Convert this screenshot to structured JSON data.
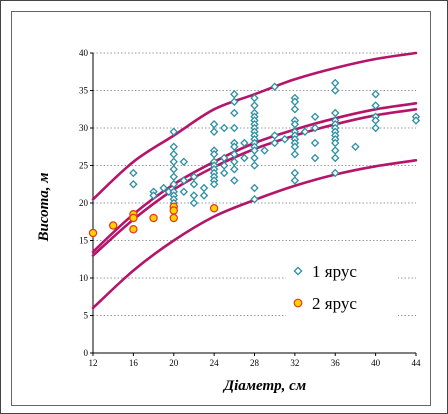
{
  "colors": {
    "curve": "#b5146b",
    "series1_stroke": "#2f8fa3",
    "series2_stroke": "#e5381e",
    "series2_fill": "#ffd200",
    "grid": "#9a9a9a"
  },
  "chart_data": {
    "type": "scatter",
    "xlabel": "Діаметр, см",
    "ylabel": "Висота, м",
    "xlim": [
      12,
      44
    ],
    "ylim": [
      0,
      40
    ],
    "x_ticks": [
      12,
      16,
      20,
      24,
      28,
      32,
      36,
      40,
      44
    ],
    "y_ticks": [
      0,
      5,
      10,
      15,
      20,
      25,
      30,
      35,
      40
    ],
    "grid": "horizontal dotted",
    "legend_position": "lower-right",
    "series": [
      {
        "name": "1 ярус",
        "marker": "diamond",
        "points": [
          [
            16,
            24
          ],
          [
            16,
            22.5
          ],
          [
            18,
            21.5
          ],
          [
            18,
            21
          ],
          [
            19,
            22
          ],
          [
            19.5,
            21.5
          ],
          [
            20,
            29.5
          ],
          [
            20,
            27.5
          ],
          [
            20,
            26.5
          ],
          [
            20,
            25.5
          ],
          [
            20,
            24.5
          ],
          [
            20,
            23.5
          ],
          [
            20,
            22.5
          ],
          [
            20,
            21.5
          ],
          [
            20,
            21
          ],
          [
            20,
            20.5
          ],
          [
            20,
            20
          ],
          [
            20,
            19.5
          ],
          [
            21,
            25.5
          ],
          [
            21,
            23
          ],
          [
            21,
            21.5
          ],
          [
            22,
            23.5
          ],
          [
            22,
            22.5
          ],
          [
            22,
            21
          ],
          [
            22,
            20
          ],
          [
            23,
            22
          ],
          [
            23,
            21
          ],
          [
            24,
            30.5
          ],
          [
            24,
            29.5
          ],
          [
            24,
            27
          ],
          [
            24,
            26.5
          ],
          [
            24,
            25.5
          ],
          [
            24,
            25
          ],
          [
            24,
            24.5
          ],
          [
            24,
            24
          ],
          [
            24,
            23.5
          ],
          [
            24,
            23
          ],
          [
            24,
            22.5
          ],
          [
            25,
            30
          ],
          [
            25,
            26
          ],
          [
            25,
            25
          ],
          [
            25,
            24
          ],
          [
            26,
            34.5
          ],
          [
            26,
            33.5
          ],
          [
            26,
            32
          ],
          [
            26,
            30
          ],
          [
            26,
            28
          ],
          [
            26,
            27.5
          ],
          [
            26,
            26.5
          ],
          [
            26,
            25.5
          ],
          [
            26,
            24.5
          ],
          [
            26,
            23
          ],
          [
            27,
            28
          ],
          [
            27,
            26
          ],
          [
            28,
            34
          ],
          [
            28,
            33
          ],
          [
            28,
            32
          ],
          [
            28,
            31.5
          ],
          [
            28,
            31
          ],
          [
            28,
            30.5
          ],
          [
            28,
            30
          ],
          [
            28,
            29.5
          ],
          [
            28,
            29
          ],
          [
            28,
            28.5
          ],
          [
            28,
            28
          ],
          [
            28,
            27.5
          ],
          [
            28,
            27
          ],
          [
            28,
            26
          ],
          [
            28,
            25
          ],
          [
            28,
            22
          ],
          [
            28,
            20.5
          ],
          [
            29,
            27
          ],
          [
            30,
            35.5
          ],
          [
            30,
            29
          ],
          [
            30,
            28
          ],
          [
            31,
            28.5
          ],
          [
            32,
            34
          ],
          [
            32,
            33.5
          ],
          [
            32,
            32.5
          ],
          [
            32,
            31
          ],
          [
            32,
            30.5
          ],
          [
            32,
            29.5
          ],
          [
            32,
            29
          ],
          [
            32,
            28.5
          ],
          [
            32,
            28
          ],
          [
            32,
            27.5
          ],
          [
            32,
            26.5
          ],
          [
            32,
            24
          ],
          [
            32,
            23
          ],
          [
            33,
            29.5
          ],
          [
            34,
            31.5
          ],
          [
            34,
            30
          ],
          [
            34,
            28
          ],
          [
            34,
            26
          ],
          [
            36,
            36
          ],
          [
            36,
            35
          ],
          [
            36,
            32
          ],
          [
            36,
            31
          ],
          [
            36,
            30.5
          ],
          [
            36,
            30
          ],
          [
            36,
            29.5
          ],
          [
            36,
            29
          ],
          [
            36,
            28.5
          ],
          [
            36,
            28
          ],
          [
            36,
            27
          ],
          [
            36,
            26
          ],
          [
            36,
            24
          ],
          [
            38,
            27.5
          ],
          [
            40,
            34.5
          ],
          [
            40,
            33
          ],
          [
            40,
            31.5
          ],
          [
            40,
            31
          ],
          [
            40,
            30
          ],
          [
            44,
            31.5
          ],
          [
            44,
            31
          ]
        ]
      },
      {
        "name": "2 ярус",
        "marker": "circle",
        "points": [
          [
            12,
            16
          ],
          [
            14,
            17
          ],
          [
            16,
            18.5
          ],
          [
            16,
            18
          ],
          [
            16,
            16.5
          ],
          [
            18,
            18
          ],
          [
            20,
            19.5
          ],
          [
            20,
            19
          ],
          [
            20,
            18
          ],
          [
            24,
            19.3
          ]
        ]
      }
    ],
    "curves": [
      {
        "role": "upper",
        "points": [
          [
            12,
            20.5
          ],
          [
            16,
            25.5
          ],
          [
            20,
            29
          ],
          [
            24,
            32.5
          ],
          [
            28,
            34.5
          ],
          [
            32,
            36.5
          ],
          [
            36,
            38
          ],
          [
            40,
            39.2
          ],
          [
            44,
            40
          ]
        ]
      },
      {
        "role": "mid_a",
        "points": [
          [
            12,
            13.5
          ],
          [
            16,
            18.5
          ],
          [
            20,
            22.5
          ],
          [
            24,
            25.5
          ],
          [
            28,
            28
          ],
          [
            32,
            29.8
          ],
          [
            36,
            31.3
          ],
          [
            40,
            32.5
          ],
          [
            44,
            33.3
          ]
        ]
      },
      {
        "role": "mid_b",
        "points": [
          [
            12,
            13
          ],
          [
            16,
            17.8
          ],
          [
            20,
            21.8
          ],
          [
            24,
            24.8
          ],
          [
            28,
            27.2
          ],
          [
            32,
            29
          ],
          [
            36,
            30.5
          ],
          [
            40,
            31.7
          ],
          [
            44,
            32.5
          ]
        ]
      },
      {
        "role": "lower",
        "points": [
          [
            12,
            6
          ],
          [
            16,
            11
          ],
          [
            20,
            15
          ],
          [
            24,
            18.2
          ],
          [
            28,
            20.4
          ],
          [
            32,
            22.3
          ],
          [
            36,
            23.8
          ],
          [
            40,
            24.9
          ],
          [
            44,
            25.7
          ]
        ]
      }
    ]
  }
}
